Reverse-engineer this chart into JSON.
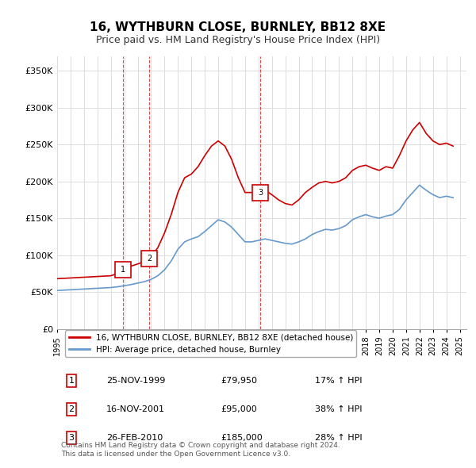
{
  "title": "16, WYTHBURN CLOSE, BURNLEY, BB12 8XE",
  "subtitle": "Price paid vs. HM Land Registry's House Price Index (HPI)",
  "ylabel_ticks": [
    "£0",
    "£50K",
    "£100K",
    "£150K",
    "£200K",
    "£250K",
    "£300K",
    "£350K"
  ],
  "ytick_vals": [
    0,
    50000,
    100000,
    150000,
    200000,
    250000,
    300000,
    350000
  ],
  "ylim": [
    0,
    370000
  ],
  "xlim_start": 1995.0,
  "xlim_end": 2025.5,
  "legend_line1": "16, WYTHBURN CLOSE, BURNLEY, BB12 8XE (detached house)",
  "legend_line2": "HPI: Average price, detached house, Burnley",
  "line_color_red": "#cc0000",
  "line_color_blue": "#6699cc",
  "vline_color": "#cc0000",
  "sale_dates": [
    1999.9,
    2001.88,
    2010.15
  ],
  "sale_prices": [
    79950,
    95000,
    185000
  ],
  "sale_labels": [
    "1",
    "2",
    "3"
  ],
  "table_data": [
    [
      "1",
      "25-NOV-1999",
      "£79,950",
      "17% ↑ HPI"
    ],
    [
      "2",
      "16-NOV-2001",
      "£95,000",
      "38% ↑ HPI"
    ],
    [
      "3",
      "26-FEB-2010",
      "£185,000",
      "28% ↑ HPI"
    ]
  ],
  "footnote": "Contains HM Land Registry data © Crown copyright and database right 2024.\nThis data is licensed under the Open Government Licence v3.0.",
  "red_line_x": [
    1995.0,
    1995.5,
    1996.0,
    1996.5,
    1997.0,
    1997.5,
    1998.0,
    1998.5,
    1999.0,
    1999.5,
    1999.9,
    2000.5,
    2001.0,
    2001.5,
    2001.88,
    2002.5,
    2003.0,
    2003.5,
    2004.0,
    2004.5,
    2005.0,
    2005.5,
    2006.0,
    2006.5,
    2007.0,
    2007.5,
    2008.0,
    2008.5,
    2009.0,
    2009.5,
    2010.15,
    2010.5,
    2011.0,
    2011.5,
    2012.0,
    2012.5,
    2013.0,
    2013.5,
    2014.0,
    2014.5,
    2015.0,
    2015.5,
    2016.0,
    2016.5,
    2017.0,
    2017.5,
    2018.0,
    2018.5,
    2019.0,
    2019.5,
    2020.0,
    2020.5,
    2021.0,
    2021.5,
    2022.0,
    2022.5,
    2023.0,
    2023.5,
    2024.0,
    2024.5
  ],
  "red_line_y": [
    68000,
    68500,
    69000,
    69500,
    70000,
    70500,
    71000,
    71500,
    72000,
    75000,
    79950,
    85000,
    88000,
    91000,
    95000,
    110000,
    130000,
    155000,
    185000,
    205000,
    210000,
    220000,
    235000,
    248000,
    255000,
    248000,
    230000,
    205000,
    185000,
    185000,
    185000,
    188000,
    182000,
    175000,
    170000,
    168000,
    175000,
    185000,
    192000,
    198000,
    200000,
    198000,
    200000,
    205000,
    215000,
    220000,
    222000,
    218000,
    215000,
    220000,
    218000,
    235000,
    255000,
    270000,
    280000,
    265000,
    255000,
    250000,
    252000,
    248000
  ],
  "blue_line_x": [
    1995.0,
    1995.5,
    1996.0,
    1996.5,
    1997.0,
    1997.5,
    1998.0,
    1998.5,
    1999.0,
    1999.5,
    2000.0,
    2000.5,
    2001.0,
    2001.5,
    2002.0,
    2002.5,
    2003.0,
    2003.5,
    2004.0,
    2004.5,
    2005.0,
    2005.5,
    2006.0,
    2006.5,
    2007.0,
    2007.5,
    2008.0,
    2008.5,
    2009.0,
    2009.5,
    2010.0,
    2010.5,
    2011.0,
    2011.5,
    2012.0,
    2012.5,
    2013.0,
    2013.5,
    2014.0,
    2014.5,
    2015.0,
    2015.5,
    2016.0,
    2016.5,
    2017.0,
    2017.5,
    2018.0,
    2018.5,
    2019.0,
    2019.5,
    2020.0,
    2020.5,
    2021.0,
    2021.5,
    2022.0,
    2022.5,
    2023.0,
    2023.5,
    2024.0,
    2024.5
  ],
  "blue_line_y": [
    52000,
    52500,
    53000,
    53500,
    54000,
    54500,
    55000,
    55500,
    56000,
    57000,
    58500,
    60000,
    62000,
    64000,
    67000,
    72000,
    80000,
    92000,
    108000,
    118000,
    122000,
    125000,
    132000,
    140000,
    148000,
    145000,
    138000,
    128000,
    118000,
    118000,
    120000,
    122000,
    120000,
    118000,
    116000,
    115000,
    118000,
    122000,
    128000,
    132000,
    135000,
    134000,
    136000,
    140000,
    148000,
    152000,
    155000,
    152000,
    150000,
    153000,
    155000,
    162000,
    175000,
    185000,
    195000,
    188000,
    182000,
    178000,
    180000,
    178000
  ]
}
